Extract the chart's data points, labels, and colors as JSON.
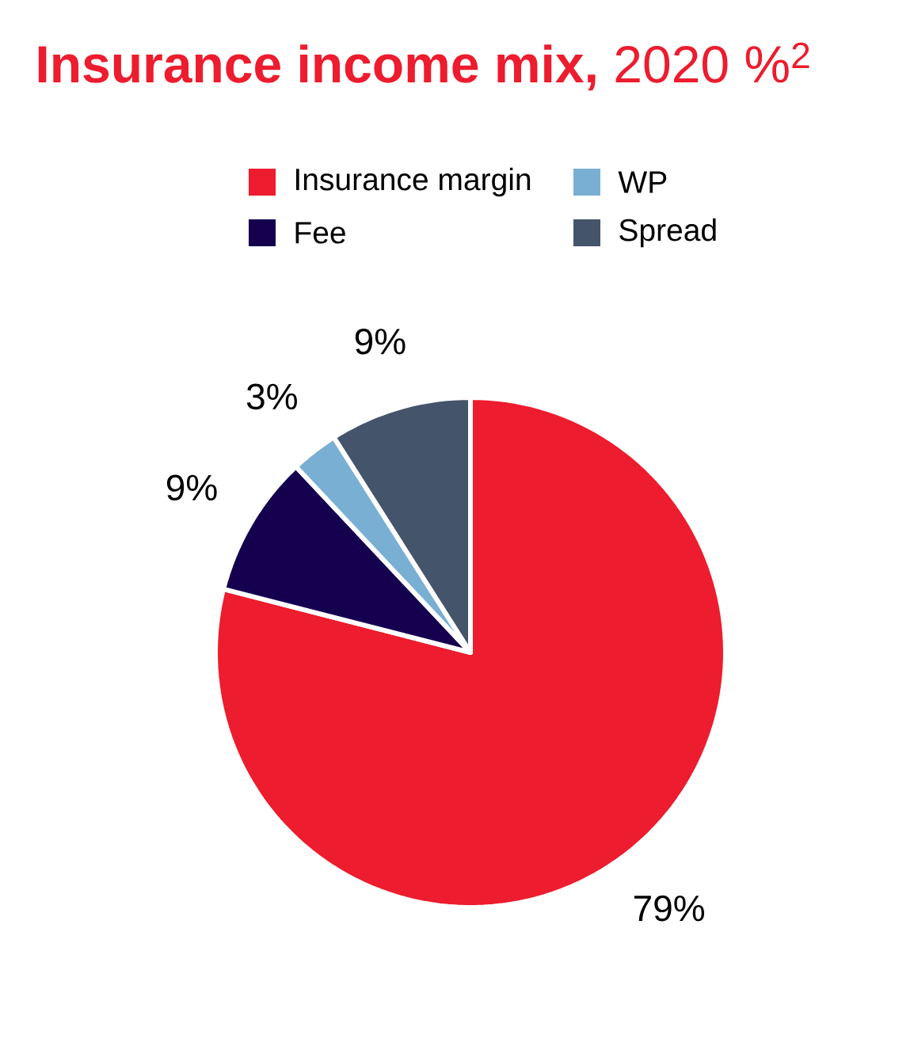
{
  "chart_data": {
    "type": "pie",
    "title": "**Insurance income mix,** 2020 %$^{2}$",
    "categories": [
      "Insurance margin",
      "Fee",
      "WP",
      "Spread"
    ],
    "values": [
      79,
      9,
      3,
      9
    ],
    "colors": [
      "#ed1c2e",
      "#150050",
      "#7aafd4",
      "#44546a"
    ],
    "value_labels": [
      "79%",
      "9%",
      "3%",
      "9%"
    ],
    "legend": "top"
  }
}
